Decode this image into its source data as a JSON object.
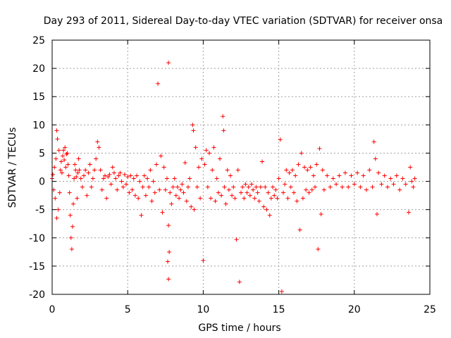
{
  "colors": {
    "series": "#ff0000",
    "grid": "#a0a0a0",
    "axis": "#000000"
  },
  "chart_data": {
    "type": "scatter",
    "title": "Day 293 of 2011, Sidereal Day-to-day VTEC variation (SDTVAR) for receiver onsa",
    "xlabel": "GPS time / hours",
    "ylabel": "SDTVAR / TECUs",
    "xlim": [
      0,
      25
    ],
    "ylim": [
      -20,
      25
    ],
    "x_ticks": [
      0,
      5,
      10,
      15,
      20,
      25
    ],
    "x_tick_labels": [
      "0",
      "5",
      "10",
      "15",
      "20",
      "25"
    ],
    "y_ticks": [
      -20,
      -15,
      -10,
      -5,
      0,
      5,
      10,
      15,
      20,
      25
    ],
    "y_tick_labels": [
      "-20",
      "-15",
      "-10",
      "-5",
      "0",
      "5",
      "10",
      "15",
      "20",
      "25"
    ],
    "grid": true,
    "marker": "+",
    "series": [
      {
        "name": "SDTVAR",
        "color": "#ff0000",
        "points": [
          [
            0.0,
            0.5
          ],
          [
            0.05,
            1.2
          ],
          [
            0.1,
            -1.5
          ],
          [
            0.15,
            2.5
          ],
          [
            0.2,
            -3.0
          ],
          [
            0.25,
            4.0
          ],
          [
            0.3,
            -6.5
          ],
          [
            0.3,
            9.0
          ],
          [
            0.35,
            7.5
          ],
          [
            0.4,
            -5.0
          ],
          [
            0.45,
            5.5
          ],
          [
            0.5,
            -2.0
          ],
          [
            0.55,
            2.0
          ],
          [
            0.6,
            3.5
          ],
          [
            0.65,
            1.5
          ],
          [
            0.7,
            4.5
          ],
          [
            0.75,
            5.5
          ],
          [
            0.8,
            3.8
          ],
          [
            0.85,
            6.0
          ],
          [
            0.9,
            2.5
          ],
          [
            0.95,
            4.8
          ],
          [
            1.0,
            5.0
          ],
          [
            1.05,
            3.0
          ],
          [
            1.1,
            1.0
          ],
          [
            1.15,
            -2.0
          ],
          [
            1.2,
            -6.0
          ],
          [
            1.25,
            -10.0
          ],
          [
            1.3,
            -12.0
          ],
          [
            1.35,
            -8.0
          ],
          [
            1.4,
            -4.0
          ],
          [
            1.45,
            0.5
          ],
          [
            1.5,
            3.0
          ],
          [
            1.55,
            2.0
          ],
          [
            1.6,
            0.8
          ],
          [
            1.65,
            -3.0
          ],
          [
            1.7,
            1.5
          ],
          [
            1.75,
            4.0
          ],
          [
            1.8,
            2.0
          ],
          [
            1.9,
            0.5
          ],
          [
            2.0,
            -1.0
          ],
          [
            2.1,
            1.0
          ],
          [
            2.2,
            2.0
          ],
          [
            2.3,
            -2.5
          ],
          [
            2.4,
            1.5
          ],
          [
            2.5,
            3.0
          ],
          [
            2.6,
            -1.0
          ],
          [
            2.7,
            0.5
          ],
          [
            2.8,
            2.0
          ],
          [
            2.9,
            4.0
          ],
          [
            3.0,
            7.0
          ],
          [
            3.1,
            6.0
          ],
          [
            3.2,
            2.0
          ],
          [
            3.3,
            -1.5
          ],
          [
            3.4,
            0.5
          ],
          [
            3.5,
            1.0
          ],
          [
            3.6,
            -3.0
          ],
          [
            3.7,
            0.8
          ],
          [
            3.8,
            1.2
          ],
          [
            3.9,
            -0.5
          ],
          [
            4.0,
            2.5
          ],
          [
            4.1,
            1.5
          ],
          [
            4.2,
            0.5
          ],
          [
            4.3,
            -1.5
          ],
          [
            4.4,
            1.0
          ],
          [
            4.5,
            1.5
          ],
          [
            4.6,
            0.0
          ],
          [
            4.7,
            -1.0
          ],
          [
            4.8,
            1.2
          ],
          [
            4.9,
            -0.5
          ],
          [
            5.0,
            0.8
          ],
          [
            5.1,
            -2.0
          ],
          [
            5.2,
            1.0
          ],
          [
            5.3,
            -1.5
          ],
          [
            5.4,
            0.5
          ],
          [
            5.5,
            -2.5
          ],
          [
            5.6,
            1.0
          ],
          [
            5.7,
            -3.0
          ],
          [
            5.8,
            0.0
          ],
          [
            5.9,
            -6.0
          ],
          [
            6.0,
            -1.0
          ],
          [
            6.1,
            1.0
          ],
          [
            6.2,
            -2.5
          ],
          [
            6.3,
            0.5
          ],
          [
            6.4,
            -1.0
          ],
          [
            6.5,
            2.0
          ],
          [
            6.6,
            -3.5
          ],
          [
            6.7,
            0.0
          ],
          [
            6.8,
            -2.0
          ],
          [
            6.9,
            3.0
          ],
          [
            7.0,
            17.3
          ],
          [
            7.1,
            -1.5
          ],
          [
            7.2,
            4.5
          ],
          [
            7.3,
            -5.5
          ],
          [
            7.4,
            2.5
          ],
          [
            7.5,
            -1.5
          ],
          [
            7.6,
            0.5
          ],
          [
            7.7,
            -7.8
          ],
          [
            7.7,
            21.0
          ],
          [
            7.75,
            -12.5
          ],
          [
            7.65,
            -14.2
          ],
          [
            7.7,
            -17.3
          ],
          [
            7.8,
            -2.0
          ],
          [
            7.9,
            -4.0
          ],
          [
            8.0,
            -1.0
          ],
          [
            8.1,
            0.5
          ],
          [
            8.2,
            -2.5
          ],
          [
            8.3,
            -1.0
          ],
          [
            8.4,
            -3.0
          ],
          [
            8.5,
            -1.5
          ],
          [
            8.6,
            -0.5
          ],
          [
            8.7,
            -2.0
          ],
          [
            8.8,
            3.3
          ],
          [
            8.9,
            -3.5
          ],
          [
            9.0,
            -1.0
          ],
          [
            9.1,
            0.5
          ],
          [
            9.2,
            -4.5
          ],
          [
            9.3,
            10.0
          ],
          [
            9.35,
            9.0
          ],
          [
            9.4,
            -5.0
          ],
          [
            9.5,
            6.0
          ],
          [
            9.6,
            -1.0
          ],
          [
            9.7,
            2.5
          ],
          [
            9.8,
            -3.0
          ],
          [
            9.9,
            4.0
          ],
          [
            10.0,
            -14.0
          ],
          [
            10.1,
            3.0
          ],
          [
            10.2,
            5.5
          ],
          [
            10.3,
            -1.0
          ],
          [
            10.4,
            5.0
          ],
          [
            10.5,
            -3.0
          ],
          [
            10.6,
            2.0
          ],
          [
            10.7,
            6.0
          ],
          [
            10.8,
            -3.5
          ],
          [
            10.9,
            0.5
          ],
          [
            11.0,
            -2.0
          ],
          [
            11.1,
            4.0
          ],
          [
            11.2,
            -2.5
          ],
          [
            11.3,
            11.5
          ],
          [
            11.35,
            9.0
          ],
          [
            11.4,
            -1.0
          ],
          [
            11.5,
            -4.0
          ],
          [
            11.6,
            2.0
          ],
          [
            11.7,
            -1.5
          ],
          [
            11.8,
            1.0
          ],
          [
            11.9,
            -2.5
          ],
          [
            12.0,
            -1.0
          ],
          [
            12.1,
            -3.0
          ],
          [
            12.2,
            -10.3
          ],
          [
            12.3,
            2.0
          ],
          [
            12.4,
            -17.8
          ],
          [
            12.5,
            -2.0
          ],
          [
            12.6,
            -1.0
          ],
          [
            12.7,
            -3.0
          ],
          [
            12.8,
            -0.5
          ],
          [
            12.9,
            -2.0
          ],
          [
            13.0,
            -1.0
          ],
          [
            13.1,
            -2.5
          ],
          [
            13.2,
            -0.5
          ],
          [
            13.3,
            -1.5
          ],
          [
            13.4,
            -3.0
          ],
          [
            13.5,
            -1.0
          ],
          [
            13.6,
            -2.0
          ],
          [
            13.7,
            -3.5
          ],
          [
            13.8,
            -1.0
          ],
          [
            13.9,
            3.5
          ],
          [
            14.0,
            -4.5
          ],
          [
            14.1,
            -1.0
          ],
          [
            14.2,
            -5.0
          ],
          [
            14.3,
            -2.0
          ],
          [
            14.4,
            -6.0
          ],
          [
            14.5,
            -3.0
          ],
          [
            14.6,
            -1.0
          ],
          [
            14.7,
            -2.5
          ],
          [
            14.8,
            -1.5
          ],
          [
            14.9,
            -3.0
          ],
          [
            15.0,
            0.5
          ],
          [
            15.1,
            7.4
          ],
          [
            15.2,
            -19.5
          ],
          [
            15.3,
            -2.0
          ],
          [
            15.4,
            -0.5
          ],
          [
            15.5,
            2.0
          ],
          [
            15.6,
            -3.0
          ],
          [
            15.7,
            1.5
          ],
          [
            15.8,
            -1.0
          ],
          [
            15.9,
            2.0
          ],
          [
            16.0,
            -2.0
          ],
          [
            16.1,
            1.0
          ],
          [
            16.2,
            -3.5
          ],
          [
            16.3,
            3.0
          ],
          [
            16.4,
            -8.6
          ],
          [
            16.5,
            5.0
          ],
          [
            16.6,
            -3.0
          ],
          [
            16.7,
            2.5
          ],
          [
            16.8,
            -1.5
          ],
          [
            16.9,
            2.0
          ],
          [
            17.0,
            -2.0
          ],
          [
            17.1,
            2.5
          ],
          [
            17.2,
            -1.5
          ],
          [
            17.3,
            1.0
          ],
          [
            17.4,
            -1.0
          ],
          [
            17.5,
            3.0
          ],
          [
            17.6,
            -12.0
          ],
          [
            17.7,
            5.8
          ],
          [
            17.8,
            -5.8
          ],
          [
            17.9,
            2.0
          ],
          [
            18.0,
            -1.5
          ],
          [
            18.2,
            1.0
          ],
          [
            18.4,
            -1.0
          ],
          [
            18.6,
            0.5
          ],
          [
            18.8,
            -0.5
          ],
          [
            19.0,
            1.0
          ],
          [
            19.2,
            -1.0
          ],
          [
            19.4,
            1.5
          ],
          [
            19.6,
            -1.0
          ],
          [
            19.8,
            1.0
          ],
          [
            20.0,
            -0.5
          ],
          [
            20.2,
            1.5
          ],
          [
            20.4,
            -1.0
          ],
          [
            20.6,
            1.0
          ],
          [
            20.8,
            -1.5
          ],
          [
            21.0,
            2.0
          ],
          [
            21.2,
            -1.0
          ],
          [
            21.3,
            7.0
          ],
          [
            21.4,
            4.0
          ],
          [
            21.5,
            -5.8
          ],
          [
            21.6,
            1.5
          ],
          [
            21.8,
            -0.5
          ],
          [
            22.0,
            1.0
          ],
          [
            22.2,
            -1.0
          ],
          [
            22.4,
            0.5
          ],
          [
            22.6,
            -0.5
          ],
          [
            22.8,
            1.0
          ],
          [
            23.0,
            -1.5
          ],
          [
            23.2,
            0.5
          ],
          [
            23.4,
            -0.5
          ],
          [
            23.6,
            -5.5
          ],
          [
            23.7,
            2.5
          ],
          [
            23.8,
            0.0
          ],
          [
            23.9,
            -1.0
          ],
          [
            24.0,
            0.5
          ]
        ]
      }
    ]
  }
}
